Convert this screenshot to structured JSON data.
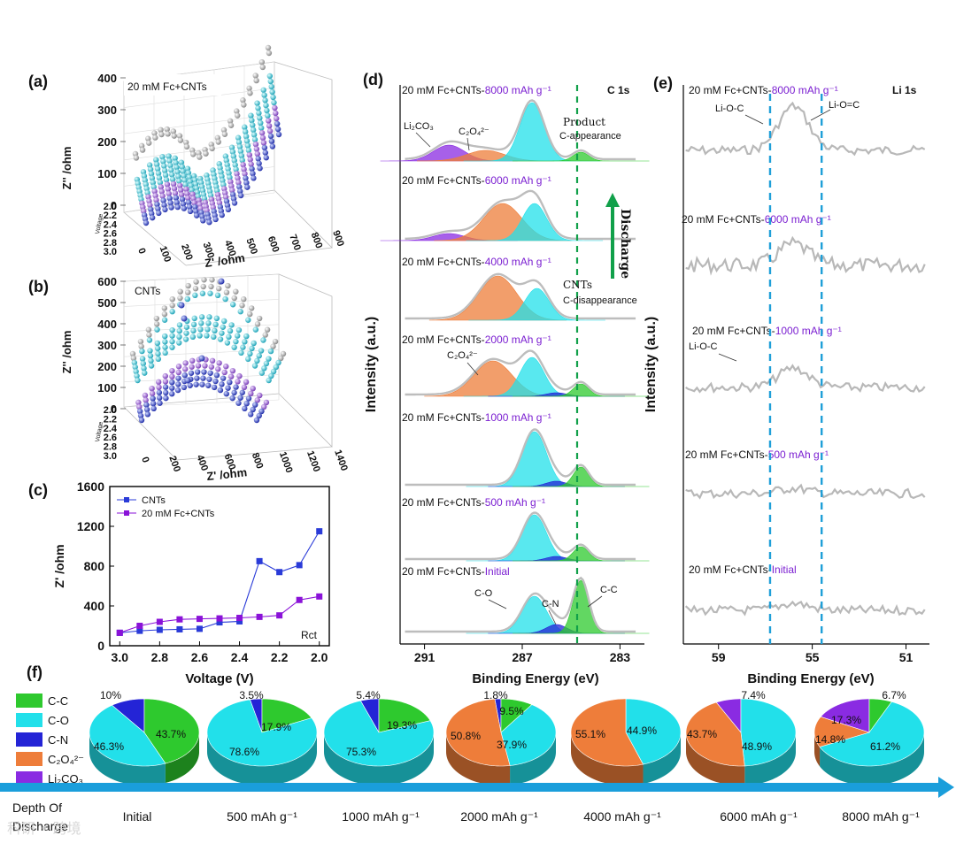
{
  "colors": {
    "cc": "#2ec92e",
    "co": "#22e0ea",
    "cn": "#2424d6",
    "c2o4": "#ee7d3a",
    "li2co3": "#8a2be2",
    "purple_text": "#7b1fd1",
    "dashed_green": "#11a04a",
    "dashed_blue": "#1f9fd8",
    "arrow": "#1a9edb",
    "series_cnts": "#2a3bd8",
    "series_fc": "#8a12d8",
    "spectrum": "#b8b8b8"
  },
  "panel_labels": {
    "a": "(a)",
    "b": "(b)",
    "c": "(c)",
    "d": "(d)",
    "e": "(e)",
    "f": "(f)"
  },
  "panel_a": {
    "legend": "20 mM  Fc+CNTs",
    "zlabel": "Z'' /ohm",
    "xlabel": "Z' /ohm",
    "zticks": [
      "400",
      "300",
      "200",
      "100",
      "0"
    ],
    "xticks": [
      "0",
      "100",
      "200",
      "300",
      "400",
      "500",
      "600",
      "700",
      "800",
      "900"
    ],
    "vticks": [
      "2.0",
      "2.2",
      "2.4",
      "2.6",
      "2.8",
      "3.0"
    ],
    "vlabel": "Voltage"
  },
  "panel_b": {
    "legend": "CNTs",
    "zlabel": "Z'' /ohm",
    "xlabel": "Z' /ohm",
    "zticks": [
      "600",
      "500",
      "400",
      "300",
      "200",
      "100",
      "0"
    ],
    "xticks": [
      "0",
      "200",
      "400",
      "600",
      "800",
      "1000",
      "1200",
      "1400"
    ],
    "vticks": [
      "2.0",
      "2.2",
      "2.4",
      "2.6",
      "2.8",
      "3.0"
    ],
    "vlabel": "Voltage"
  },
  "chart_data": [
    {
      "panel": "c",
      "type": "line",
      "title": "",
      "xlabel": "Voltage (V)",
      "ylabel": "Z' /ohm",
      "annotation": "Rct",
      "xlim": [
        3.05,
        1.95
      ],
      "ylim": [
        0,
        1600
      ],
      "xticks": [
        "3.0",
        "2.8",
        "2.6",
        "2.4",
        "2.2",
        "2.0"
      ],
      "yticks": [
        "0",
        "400",
        "800",
        "1200",
        "1600"
      ],
      "series": [
        {
          "name": "CNTs",
          "x": [
            3.0,
            2.9,
            2.8,
            2.7,
            2.6,
            2.5,
            2.4,
            2.3,
            2.2,
            2.1,
            2.0
          ],
          "values": [
            130,
            150,
            160,
            165,
            170,
            235,
            245,
            850,
            740,
            810,
            1150
          ]
        },
        {
          "name": "20 mM  Fc+CNTs",
          "x": [
            3.0,
            2.9,
            2.8,
            2.7,
            2.6,
            2.5,
            2.4,
            2.3,
            2.2,
            2.1,
            2.0
          ],
          "values": [
            130,
            200,
            240,
            265,
            270,
            275,
            280,
            290,
            305,
            460,
            495
          ]
        }
      ]
    },
    {
      "panel": "d",
      "type": "area",
      "title": "C 1s",
      "xlabel": "Binding Energy (eV)",
      "ylabel": "Intensity (a.u.)",
      "xlim": [
        292,
        282
      ],
      "xticks": [
        "291",
        "287",
        "283"
      ],
      "spectra": [
        {
          "prefix": "20 mM Fc+CNTs-",
          "suffix": "8000 mAh g⁻¹",
          "components": {
            "Li2CO3": 290.0,
            "C2O4": 288.5,
            "C-O": 286.6,
            "C-C": 284.6
          }
        },
        {
          "prefix": "20 mM Fc+CNTs-",
          "suffix": "6000 mAh g⁻¹",
          "components": {
            "Li2CO3": 290.0,
            "C2O4": 287.8,
            "C-O": 286.5
          }
        },
        {
          "prefix": "20 mM Fc+CNTs-",
          "suffix": "4000 mAh g⁻¹",
          "components": {
            "C2O4": 288.0,
            "C-O": 286.4
          }
        },
        {
          "prefix": "20 mM Fc+CNTs-",
          "suffix": "2000 mAh g⁻¹",
          "components": {
            "C2O4": 288.2,
            "C-O": 286.6,
            "C-N": 285.6,
            "C-C": 284.6
          }
        },
        {
          "prefix": "20 mM Fc+CNTs-",
          "suffix": "1000 mAh g⁻¹",
          "components": {
            "C-O": 286.5,
            "C-N": 285.6,
            "C-C": 284.6
          }
        },
        {
          "prefix": "20 mM Fc+CNTs-",
          "suffix": "500 mAh g⁻¹",
          "components": {
            "C-O": 286.5,
            "C-N": 285.6,
            "C-C": 284.6
          }
        },
        {
          "prefix": "20 mM Fc+CNTs-",
          "suffix": "Initial",
          "components": {
            "C-O": 286.5,
            "C-N": 285.6,
            "C-C": 284.6
          }
        }
      ],
      "annotations": {
        "li2co3": "Li₂CO₃",
        "c2o4_top": "C₂O₄²⁻",
        "c2o4_mid": "C₂O₄²⁻",
        "product": "Product",
        "c_appearance": "C-appearance",
        "cnts": "CNTs",
        "c_disappearance": "C-disappearance",
        "discharge": "Discharge",
        "co": "C-O",
        "cn": "C-N",
        "cc": "C-C"
      }
    },
    {
      "panel": "e",
      "type": "line",
      "title": "Li 1s",
      "xlabel": "Binding Energy (eV)",
      "ylabel": "Intensity (a.u.)",
      "xlim": [
        60.5,
        50
      ],
      "xticks": [
        "59",
        "55",
        "51"
      ],
      "reference_lines_eV": [
        56.8,
        54.6
      ],
      "spectra": [
        {
          "prefix": "20 mM Fc+CNTs-",
          "suffix": "8000 mAh g⁻¹"
        },
        {
          "prefix": "20 mM Fc+CNTs-",
          "suffix": "6000 mAh g⁻¹"
        },
        {
          "prefix": "20 mM Fc+CNTs-",
          "suffix": "1000 mAh g⁻¹"
        },
        {
          "prefix": "20 mM Fc+CNTs-",
          "suffix": "500 mAh g⁻¹"
        },
        {
          "prefix": "20 mM Fc+CNTs-",
          "suffix": "Initial"
        }
      ],
      "annotations": {
        "lioc": "Li-O-C",
        "lioc2": "Li-O-C",
        "lioeqc": "Li-O=C"
      }
    },
    {
      "panel": "f",
      "type": "pie",
      "legend": [
        "C-C",
        "C-O",
        "C-N",
        "C₂O₄²⁻",
        "Li₂CO₃"
      ],
      "axis_label": [
        "Depth Of",
        "Discharge"
      ],
      "pies": [
        {
          "label": "Initial",
          "CC": 43.7,
          "CO": 46.3,
          "CN": 10.0,
          "C2O4": 0,
          "Li2CO3": 0
        },
        {
          "label": "500 mAh  g⁻¹",
          "CC": 17.9,
          "CO": 78.6,
          "CN": 3.5,
          "C2O4": 0,
          "Li2CO3": 0
        },
        {
          "label": "1000 mAh  g⁻¹",
          "CC": 19.3,
          "CO": 75.3,
          "CN": 5.4,
          "C2O4": 0,
          "Li2CO3": 0
        },
        {
          "label": "2000 mAh  g⁻¹",
          "CC": 9.5,
          "CO": 37.9,
          "CN": 1.8,
          "C2O4": 50.8,
          "Li2CO3": 0
        },
        {
          "label": "4000 mAh  g⁻¹",
          "CC": 0,
          "CO": 44.9,
          "CN": 0,
          "C2O4": 55.1,
          "Li2CO3": 0
        },
        {
          "label": "6000 mAh  g⁻¹",
          "CC": 0,
          "CO": 48.9,
          "CN": 0,
          "C2O4": 43.7,
          "Li2CO3": 7.4
        },
        {
          "label": "8000 mAh  g⁻¹",
          "CC": 6.7,
          "CO": 61.2,
          "CN": 0,
          "C2O4": 14.8,
          "Li2CO3": 17.3
        }
      ],
      "pct_labels": [
        [
          "10%",
          "43.7%",
          "46.3%"
        ],
        [
          "3.5%",
          "17.9%",
          "78.6%"
        ],
        [
          "5.4%",
          "19.3%",
          "75.3%"
        ],
        [
          "1.8%",
          "9.5%",
          "50.8%",
          "37.9%"
        ],
        [
          "55.1%",
          "44.9%"
        ],
        [
          "7.4%",
          "43.7%",
          "48.9%"
        ],
        [
          "6.7%",
          "17.3%",
          "14.8%",
          "61.2%"
        ]
      ]
    }
  ],
  "watermark": "科研 • 跨境"
}
